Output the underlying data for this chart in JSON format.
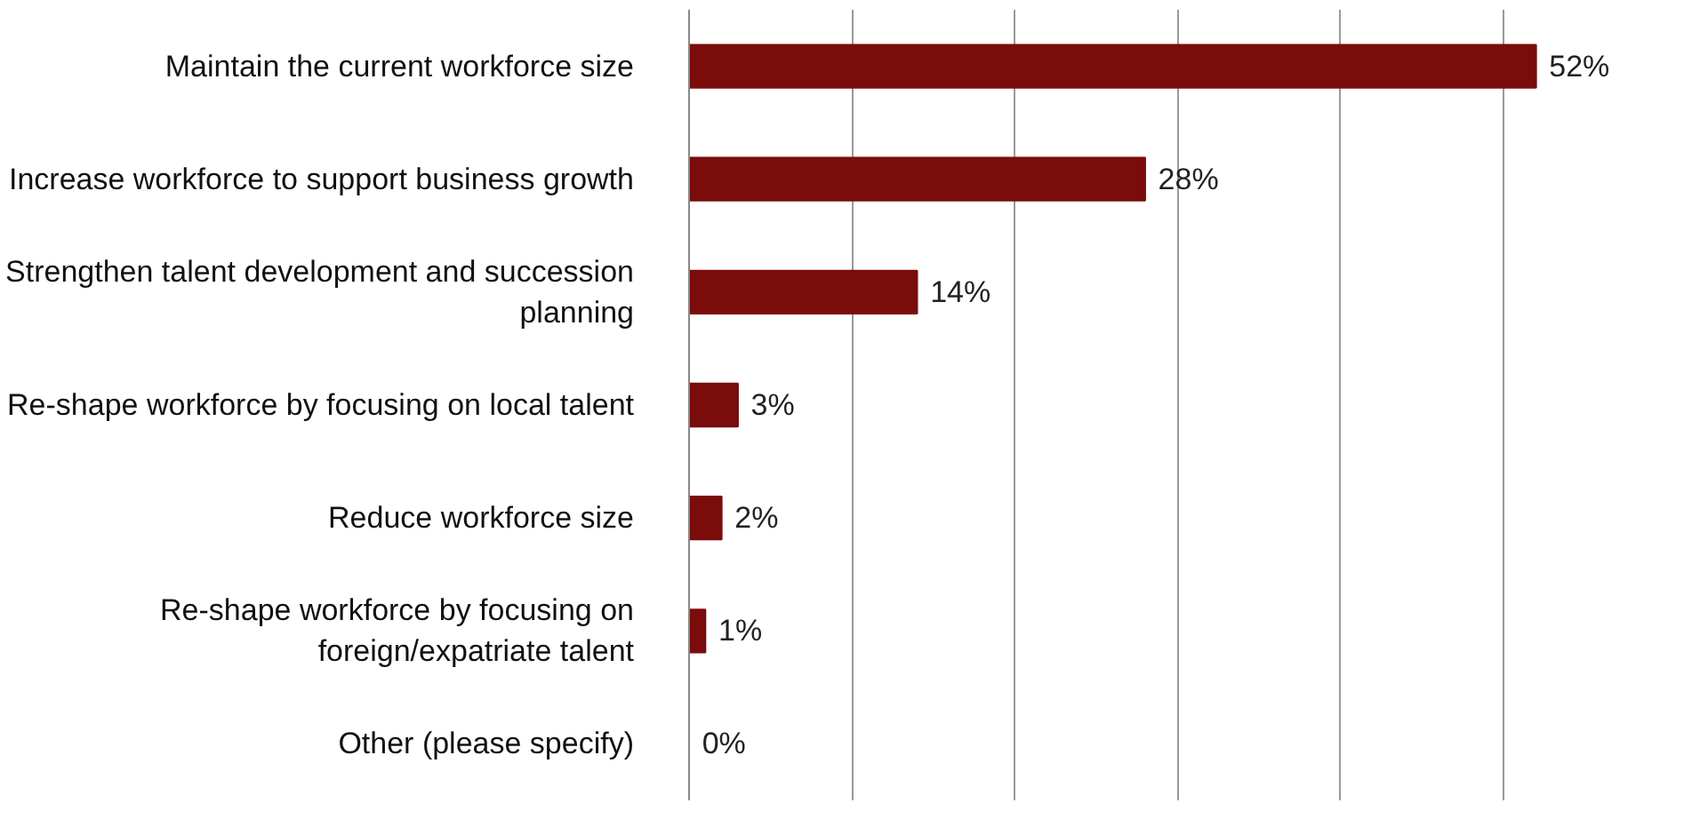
{
  "chart_data": {
    "type": "bar",
    "orientation": "horizontal",
    "categories": [
      "Maintain the current workforce size",
      "Increase workforce to support business growth",
      "Strengthen talent development and succession planning",
      "Re-shape workforce by focusing on local talent",
      "Reduce workforce size",
      "Re-shape workforce by focusing on foreign/expatriate talent",
      "Other (please specify)"
    ],
    "values": [
      52,
      28,
      14,
      3,
      2,
      1,
      0
    ],
    "color": "#7b0c0c",
    "value_labels": [
      "52%",
      "28%",
      "14%",
      "3%",
      "2%",
      "1%",
      "0%"
    ],
    "xticks": [
      {
        "value": 0,
        "label": null
      },
      {
        "value": 10,
        "label": null
      },
      {
        "value": 20,
        "label": null
      },
      {
        "value": 30,
        "label": null
      },
      {
        "value": 40,
        "label": null
      },
      {
        "value": 50,
        "label": null
      }
    ],
    "grid": "x",
    "tick_labels": "y"
  }
}
